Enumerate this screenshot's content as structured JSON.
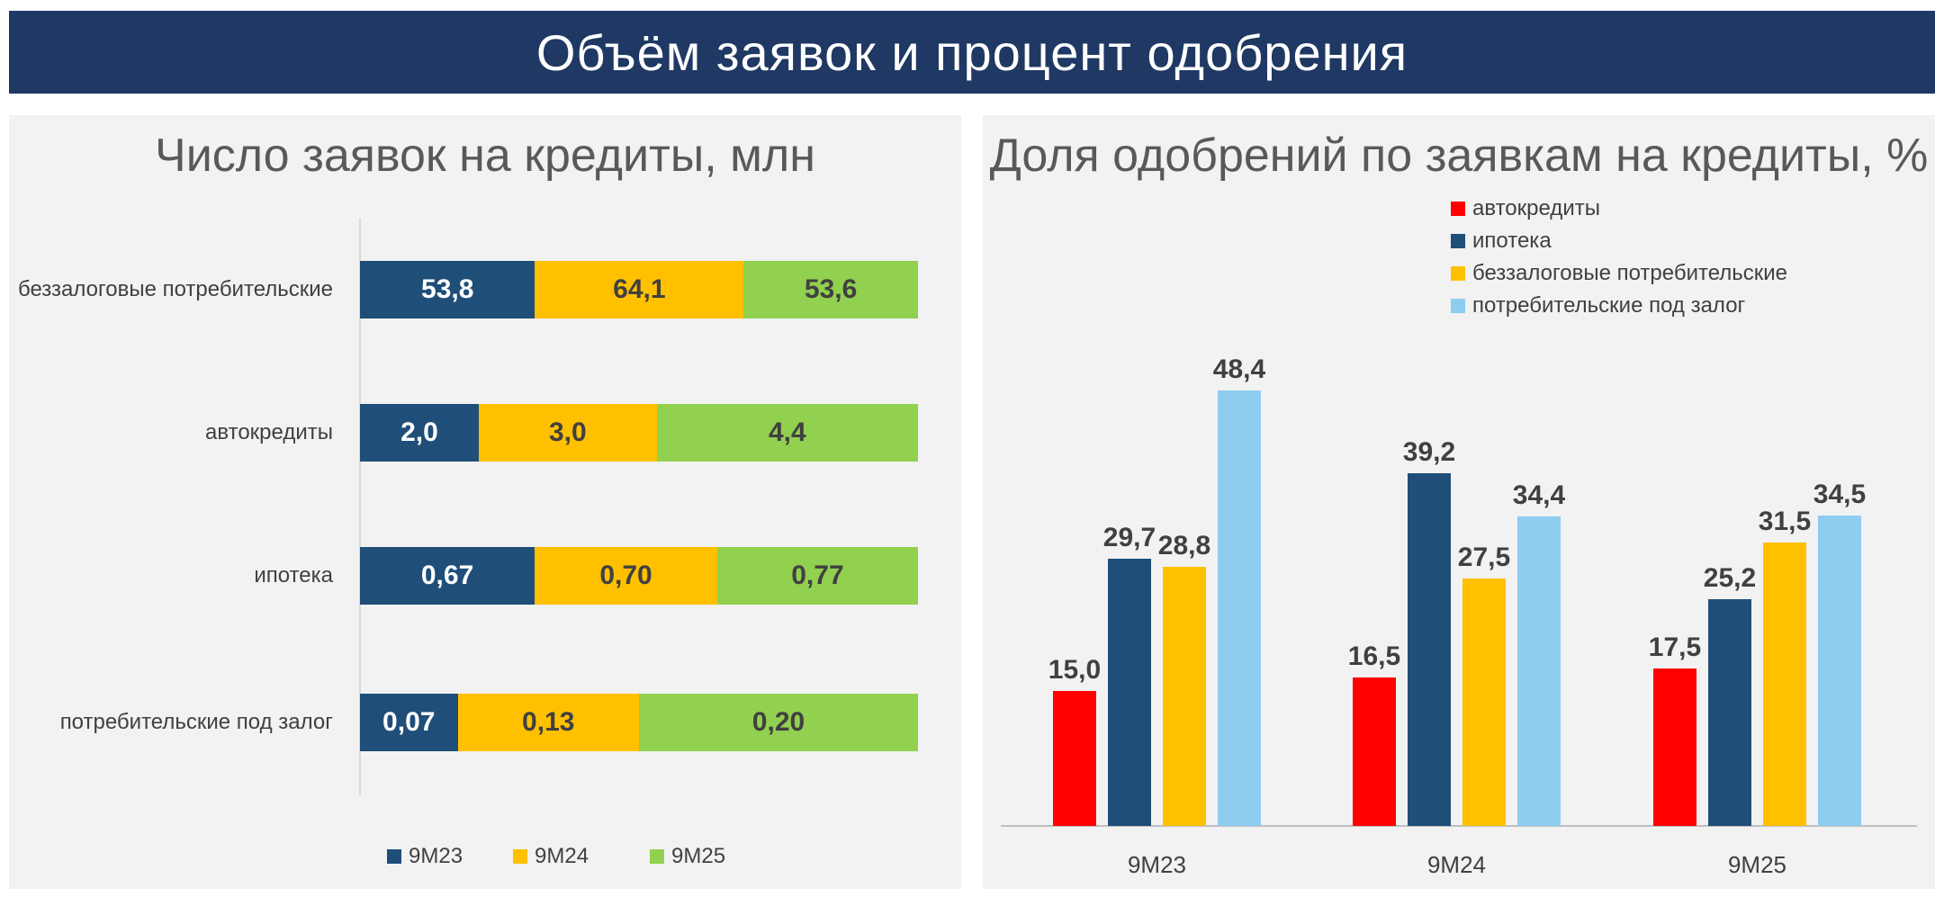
{
  "header": {
    "title": "Объём заявок и процент одобрения"
  },
  "colors": {
    "banner": "#1f3864",
    "panel": "#f2f2f2",
    "9M23": "#1f4e79",
    "9M24": "#ffc000",
    "9M25": "#92d050",
    "auto": "#ff0000",
    "ipoteka": "#1f4e79",
    "bezzalog": "#ffc000",
    "podzalog": "#8ecdf0"
  },
  "chart_data": [
    {
      "type": "bar",
      "orientation": "horizontal-stacked-100",
      "title": "Число заявок на кредиты, млн",
      "categories": [
        "беззалоговые потребительские",
        "автокредиты",
        "ипотека",
        "потребительские под залог"
      ],
      "series": [
        {
          "name": "9M23",
          "values": [
            53.8,
            2.0,
            0.67,
            0.07
          ],
          "labels": [
            "53,8",
            "2,0",
            "0,67",
            "0,07"
          ],
          "color": "#1f4e79",
          "text_color": "#ffffff"
        },
        {
          "name": "9M24",
          "values": [
            64.1,
            3.0,
            0.7,
            0.13
          ],
          "labels": [
            "64,1",
            "3,0",
            "0,70",
            "0,13"
          ],
          "color": "#ffc000",
          "text_color": "#404040"
        },
        {
          "name": "9M25",
          "values": [
            53.6,
            4.4,
            0.77,
            0.2
          ],
          "labels": [
            "53,6",
            "4,4",
            "0,77",
            "0,20"
          ],
          "color": "#92d050",
          "text_color": "#404040"
        }
      ],
      "legend": "bottom"
    },
    {
      "type": "bar",
      "orientation": "vertical-grouped",
      "title": "Доля одобрений по заявкам на кредиты, %",
      "categories": [
        "9M23",
        "9M24",
        "9M25"
      ],
      "ylim": [
        0,
        50
      ],
      "series": [
        {
          "name": "автокредиты",
          "values": [
            15.0,
            16.5,
            17.5
          ],
          "labels": [
            "15,0",
            "16,5",
            "17,5"
          ],
          "color": "#ff0000"
        },
        {
          "name": "ипотека",
          "values": [
            29.7,
            39.2,
            25.2
          ],
          "labels": [
            "29,7",
            "39,2",
            "25,2"
          ],
          "color": "#1f4e79"
        },
        {
          "name": "беззалоговые потребительские",
          "values": [
            28.8,
            27.5,
            31.5
          ],
          "labels": [
            "28,8",
            "27,5",
            "31,5"
          ],
          "color": "#ffc000"
        },
        {
          "name": "потребительские под залог",
          "values": [
            48.4,
            34.4,
            34.5
          ],
          "labels": [
            "48,4",
            "34,4",
            "34,5"
          ],
          "color": "#8ecdf0"
        }
      ],
      "legend": "top"
    }
  ]
}
